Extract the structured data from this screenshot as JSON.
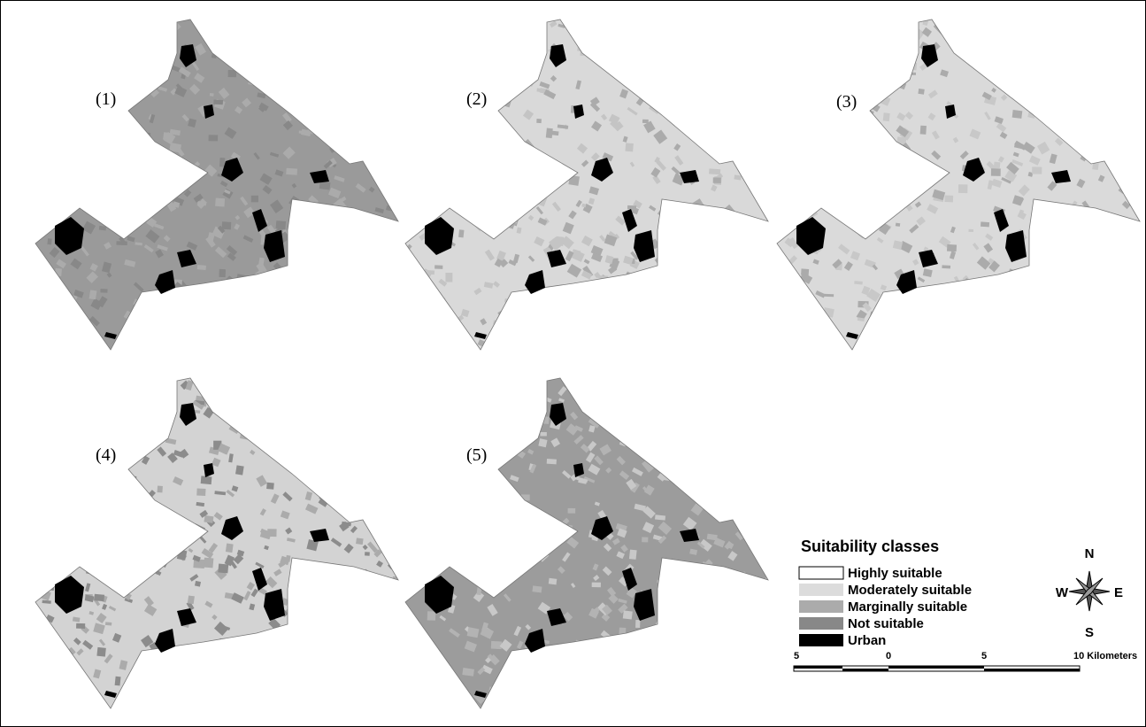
{
  "panels": [
    {
      "label": "(1)"
    },
    {
      "label": "(2)"
    },
    {
      "label": "(3)"
    },
    {
      "label": "(4)"
    },
    {
      "label": "(5)"
    }
  ],
  "legend": {
    "title": "Suitability classes",
    "items": [
      "Highly suitable",
      "Moderately suitable",
      "Marginally suitable",
      "Not suitable",
      "Urban"
    ]
  },
  "compass": {
    "north": "N",
    "south": "S",
    "east": "E",
    "west": "W"
  },
  "scale_bar": {
    "labels": [
      "5",
      "0",
      "5",
      "10 Kilometers"
    ]
  }
}
